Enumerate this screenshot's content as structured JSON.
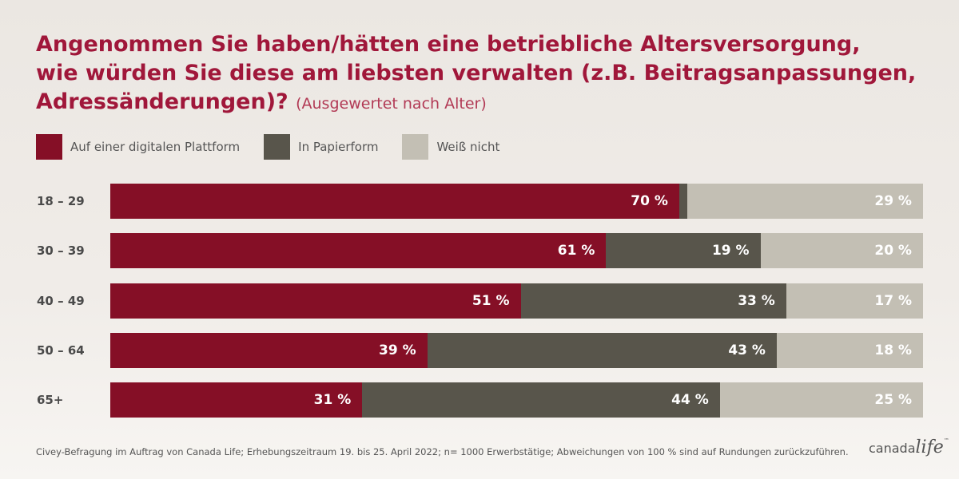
{
  "title": {
    "line1": "Angenommen Sie haben/hätten eine betriebliche Altersversorgung,",
    "line2": "wie würden Sie diese am liebsten verwalten (z.B. Beitragsanpassungen,",
    "line3": "Adressänderungen)?",
    "subtitle": "(Ausgewertet nach Alter)"
  },
  "colors": {
    "accent": "#a0173a",
    "digital": "#850f26",
    "paper": "#58554b",
    "unknown": "#c3bfb4"
  },
  "chart_data": {
    "type": "bar",
    "orientation": "horizontal",
    "stacked": true,
    "categories": [
      "18 – 29",
      "30 – 39",
      "40 – 49",
      "50 – 64",
      "65+"
    ],
    "series": [
      {
        "name": "Auf einer digitalen Plattform",
        "values": [
          70,
          61,
          51,
          39,
          31
        ],
        "labels": [
          "70 %",
          "61 %",
          "51 %",
          "39 %",
          "31 %"
        ]
      },
      {
        "name": "In Papierform",
        "values": [
          1,
          19,
          33,
          43,
          44
        ],
        "labels": [
          "",
          "19 %",
          "33 %",
          "43 %",
          "44 %"
        ]
      },
      {
        "name": "Weiß nicht",
        "values": [
          29,
          20,
          17,
          18,
          25
        ],
        "labels": [
          "29 %",
          "20 %",
          "17 %",
          "18 %",
          "25 %"
        ]
      }
    ],
    "legend": "top-left",
    "grid": false
  },
  "footnote": "Civey-Befragung im Auftrag von Canada Life; Erhebungszeitraum 19. bis 25. April 2022; n= 1000 Erwerbstätige; Abweichungen von 100 % sind auf Rundungen zurückzuführen.",
  "logo": {
    "part1": "canada",
    "part2": "life",
    "tm": "™"
  }
}
